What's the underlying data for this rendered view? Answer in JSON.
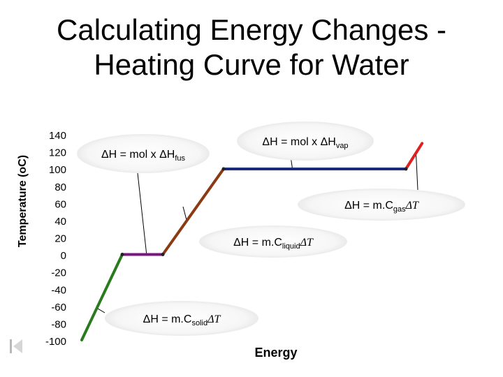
{
  "title_line1": "Calculating Energy Changes -",
  "title_line2": "Heating Curve for Water",
  "chart_data": {
    "type": "line",
    "title": "Calculating Energy Changes - Heating Curve for Water",
    "xlabel": "Energy",
    "ylabel": "Temperature (oC)",
    "ylim": [
      -100,
      140
    ],
    "yticks": [
      140,
      120,
      100,
      80,
      60,
      40,
      20,
      0,
      -20,
      -40,
      -60,
      -80,
      -100
    ],
    "grid": false,
    "series": [
      {
        "color": "#2a7a1e",
        "points": [
          [
            0,
            -100
          ],
          [
            1,
            0
          ]
        ]
      },
      {
        "color": "#7a1680",
        "points": [
          [
            1,
            0
          ],
          [
            2,
            0
          ]
        ]
      },
      {
        "color": "#8b3a12",
        "points": [
          [
            2,
            0
          ],
          [
            3.5,
            100
          ]
        ]
      },
      {
        "color": "#1c2a7a",
        "points": [
          [
            3.5,
            100
          ],
          [
            8,
            100
          ]
        ]
      },
      {
        "color": "#e02020",
        "points": [
          [
            8,
            100
          ],
          [
            8.4,
            130
          ]
        ]
      }
    ],
    "annotations": [
      {
        "name": "fus",
        "lhs": "ΔH = mol x ΔH",
        "sub": "fus",
        "tail": ""
      },
      {
        "name": "vap",
        "lhs": "ΔH = mol x ΔH",
        "sub": "vap",
        "tail": ""
      },
      {
        "name": "gas",
        "lhs": "ΔH = m.C",
        "sub": "gas",
        "tail": "ΔT"
      },
      {
        "name": "liquid",
        "lhs": "ΔH = m.C",
        "sub": "liquid",
        "tail": "ΔT"
      },
      {
        "name": "solid",
        "lhs": "ΔH = m.C",
        "sub": "solid",
        "tail": "ΔT"
      }
    ],
    "colors": {
      "plot_bg": "#ffffff",
      "callout_bg": "#ffffff"
    }
  },
  "icons": {
    "nav": "slide-nav-first-icon"
  }
}
